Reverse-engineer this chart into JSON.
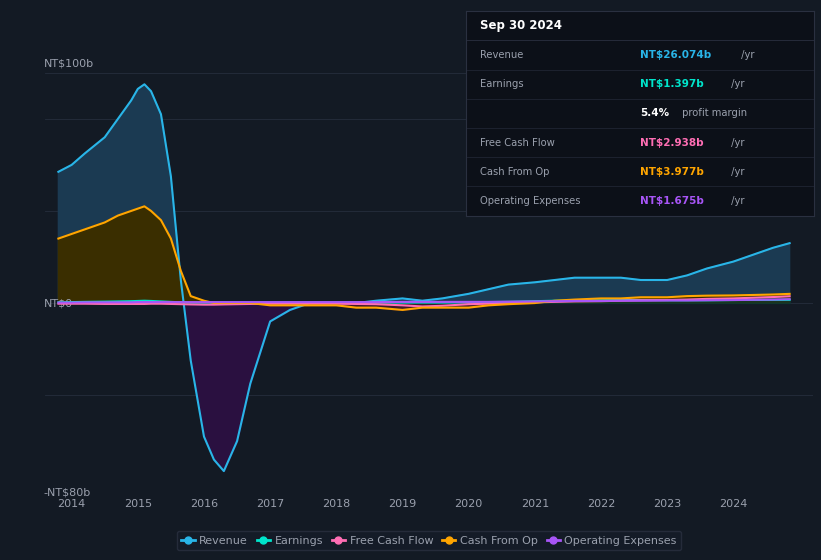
{
  "bg_color": "#131a24",
  "plot_bg_color": "#131a24",
  "ylabel_top": "NT$100b",
  "ylabel_zero": "NT$0",
  "ylabel_bottom": "-NT$80b",
  "ylim_min": -80,
  "ylim_max": 100,
  "xlim_min": 2013.6,
  "xlim_max": 2025.2,
  "x_ticks": [
    2014,
    2015,
    2016,
    2017,
    2018,
    2019,
    2020,
    2021,
    2022,
    2023,
    2024
  ],
  "revenue_color": "#29b5e8",
  "earnings_color": "#00e5cc",
  "free_cash_flow_color": "#ff6eb4",
  "cash_from_op_color": "#ffa500",
  "operating_expenses_color": "#a855f7",
  "revenue_fill_pos": "#1b3a52",
  "revenue_fill_neg": "#2a1040",
  "earnings_fill_pos": "#003a3a",
  "cash_from_op_fill_pos": "#3a2e00",
  "cash_from_op_fill_neg": "#4a1a28",
  "grid_color": "#252e3d",
  "text_color": "#9aa0ad",
  "white": "#ffffff",
  "info_box_bg": "#0c1018",
  "info_box_border": "#2a3040",
  "legend_bg": "#151c28",
  "legend_border": "#2a3040",
  "title": "Sep 30 2024",
  "info_rows": [
    {
      "label": "Revenue",
      "value": "NT$26.074b",
      "suffix": " /yr",
      "color": "#29b5e8"
    },
    {
      "label": "Earnings",
      "value": "NT$1.397b",
      "suffix": " /yr",
      "color": "#00e5cc"
    },
    {
      "label": "",
      "value": "5.4%",
      "suffix": " profit margin",
      "color": "#ffffff"
    },
    {
      "label": "Free Cash Flow",
      "value": "NT$2.938b",
      "suffix": " /yr",
      "color": "#ff6eb4"
    },
    {
      "label": "Cash From Op",
      "value": "NT$3.977b",
      "suffix": " /yr",
      "color": "#ffa500"
    },
    {
      "label": "Operating Expenses",
      "value": "NT$1.675b",
      "suffix": " /yr",
      "color": "#a855f7"
    }
  ]
}
